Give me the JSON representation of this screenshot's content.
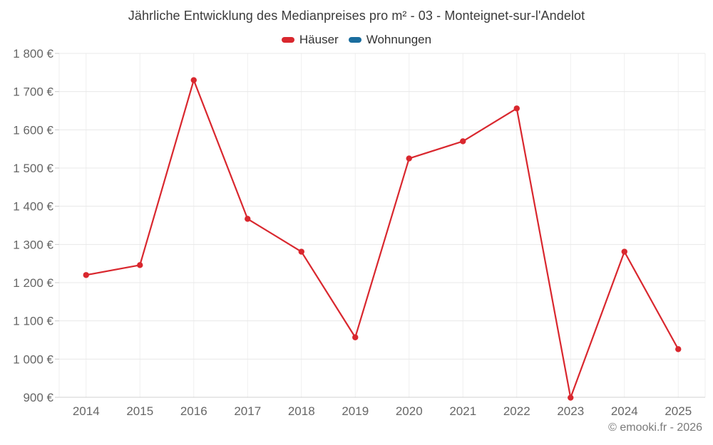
{
  "page": {
    "footer_credit": "© emooki.fr - 2026"
  },
  "chart_data": {
    "type": "line",
    "title": "Jährliche Entwicklung des Medianpreises pro m² - 03 - Monteignet-sur-l'Andelot",
    "categories": [
      "2014",
      "2015",
      "2016",
      "2017",
      "2018",
      "2019",
      "2020",
      "2021",
      "2022",
      "2023",
      "2024",
      "2025"
    ],
    "series": [
      {
        "name": "Häuser",
        "color": "#d9272e",
        "values": [
          1220,
          1246,
          1730,
          1367,
          1281,
          1057,
          1525,
          1570,
          1656,
          899,
          1281,
          1026
        ]
      },
      {
        "name": "Wohnungen",
        "color": "#1a6d9e",
        "values": []
      }
    ],
    "xlabel": "",
    "ylabel": "",
    "ylim": [
      900,
      1800
    ],
    "ytick_step": 100,
    "ytick_format": "{value} €",
    "grid": true,
    "legend_position": "top"
  },
  "theme": {
    "title_color": "#3b3b3b",
    "legend_text_color": "#333333",
    "axis_text_color": "#666666",
    "footer_color": "#7a7a7a",
    "h_grid_color": "#e8e8e8",
    "v_grid_color": "#efefef",
    "axis_line_color": "#d0d0d0",
    "tick_color": "#cccccc",
    "background_color": "#ffffff"
  }
}
